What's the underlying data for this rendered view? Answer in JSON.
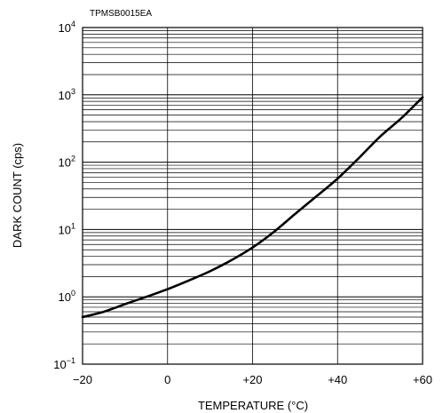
{
  "chart_data": {
    "type": "line",
    "figure_code": "TPMSB0015EA",
    "xlabel": "TEMPERATURE (°C)",
    "ylabel": "DARK  COUNT (cps)",
    "xlim": [
      -20,
      60
    ],
    "x_ticks": [
      "−20",
      "0",
      "+20",
      "+40",
      "+60"
    ],
    "x_tick_values": [
      -20,
      0,
      20,
      40,
      60
    ],
    "y_scale": "log",
    "ylim": [
      0.1,
      10000
    ],
    "y_ticks": [
      {
        "base": "10",
        "exp": "4",
        "value": 10000
      },
      {
        "base": "10",
        "exp": "3",
        "value": 1000
      },
      {
        "base": "10",
        "exp": "2",
        "value": 100
      },
      {
        "base": "10",
        "exp": "1",
        "value": 10
      },
      {
        "base": "10",
        "exp": "0",
        "value": 1
      },
      {
        "base": "10",
        "exp": "−1",
        "value": 0.1
      }
    ],
    "grid": true,
    "series": [
      {
        "x": [
          -20,
          -15,
          -10,
          -5,
          0,
          5,
          10,
          15,
          20,
          25,
          30,
          35,
          40,
          45,
          50,
          55,
          60
        ],
        "y": [
          0.5,
          0.6,
          0.78,
          1.0,
          1.3,
          1.75,
          2.4,
          3.5,
          5.4,
          9.2,
          17,
          31,
          57,
          115,
          240,
          450,
          920
        ]
      }
    ]
  }
}
